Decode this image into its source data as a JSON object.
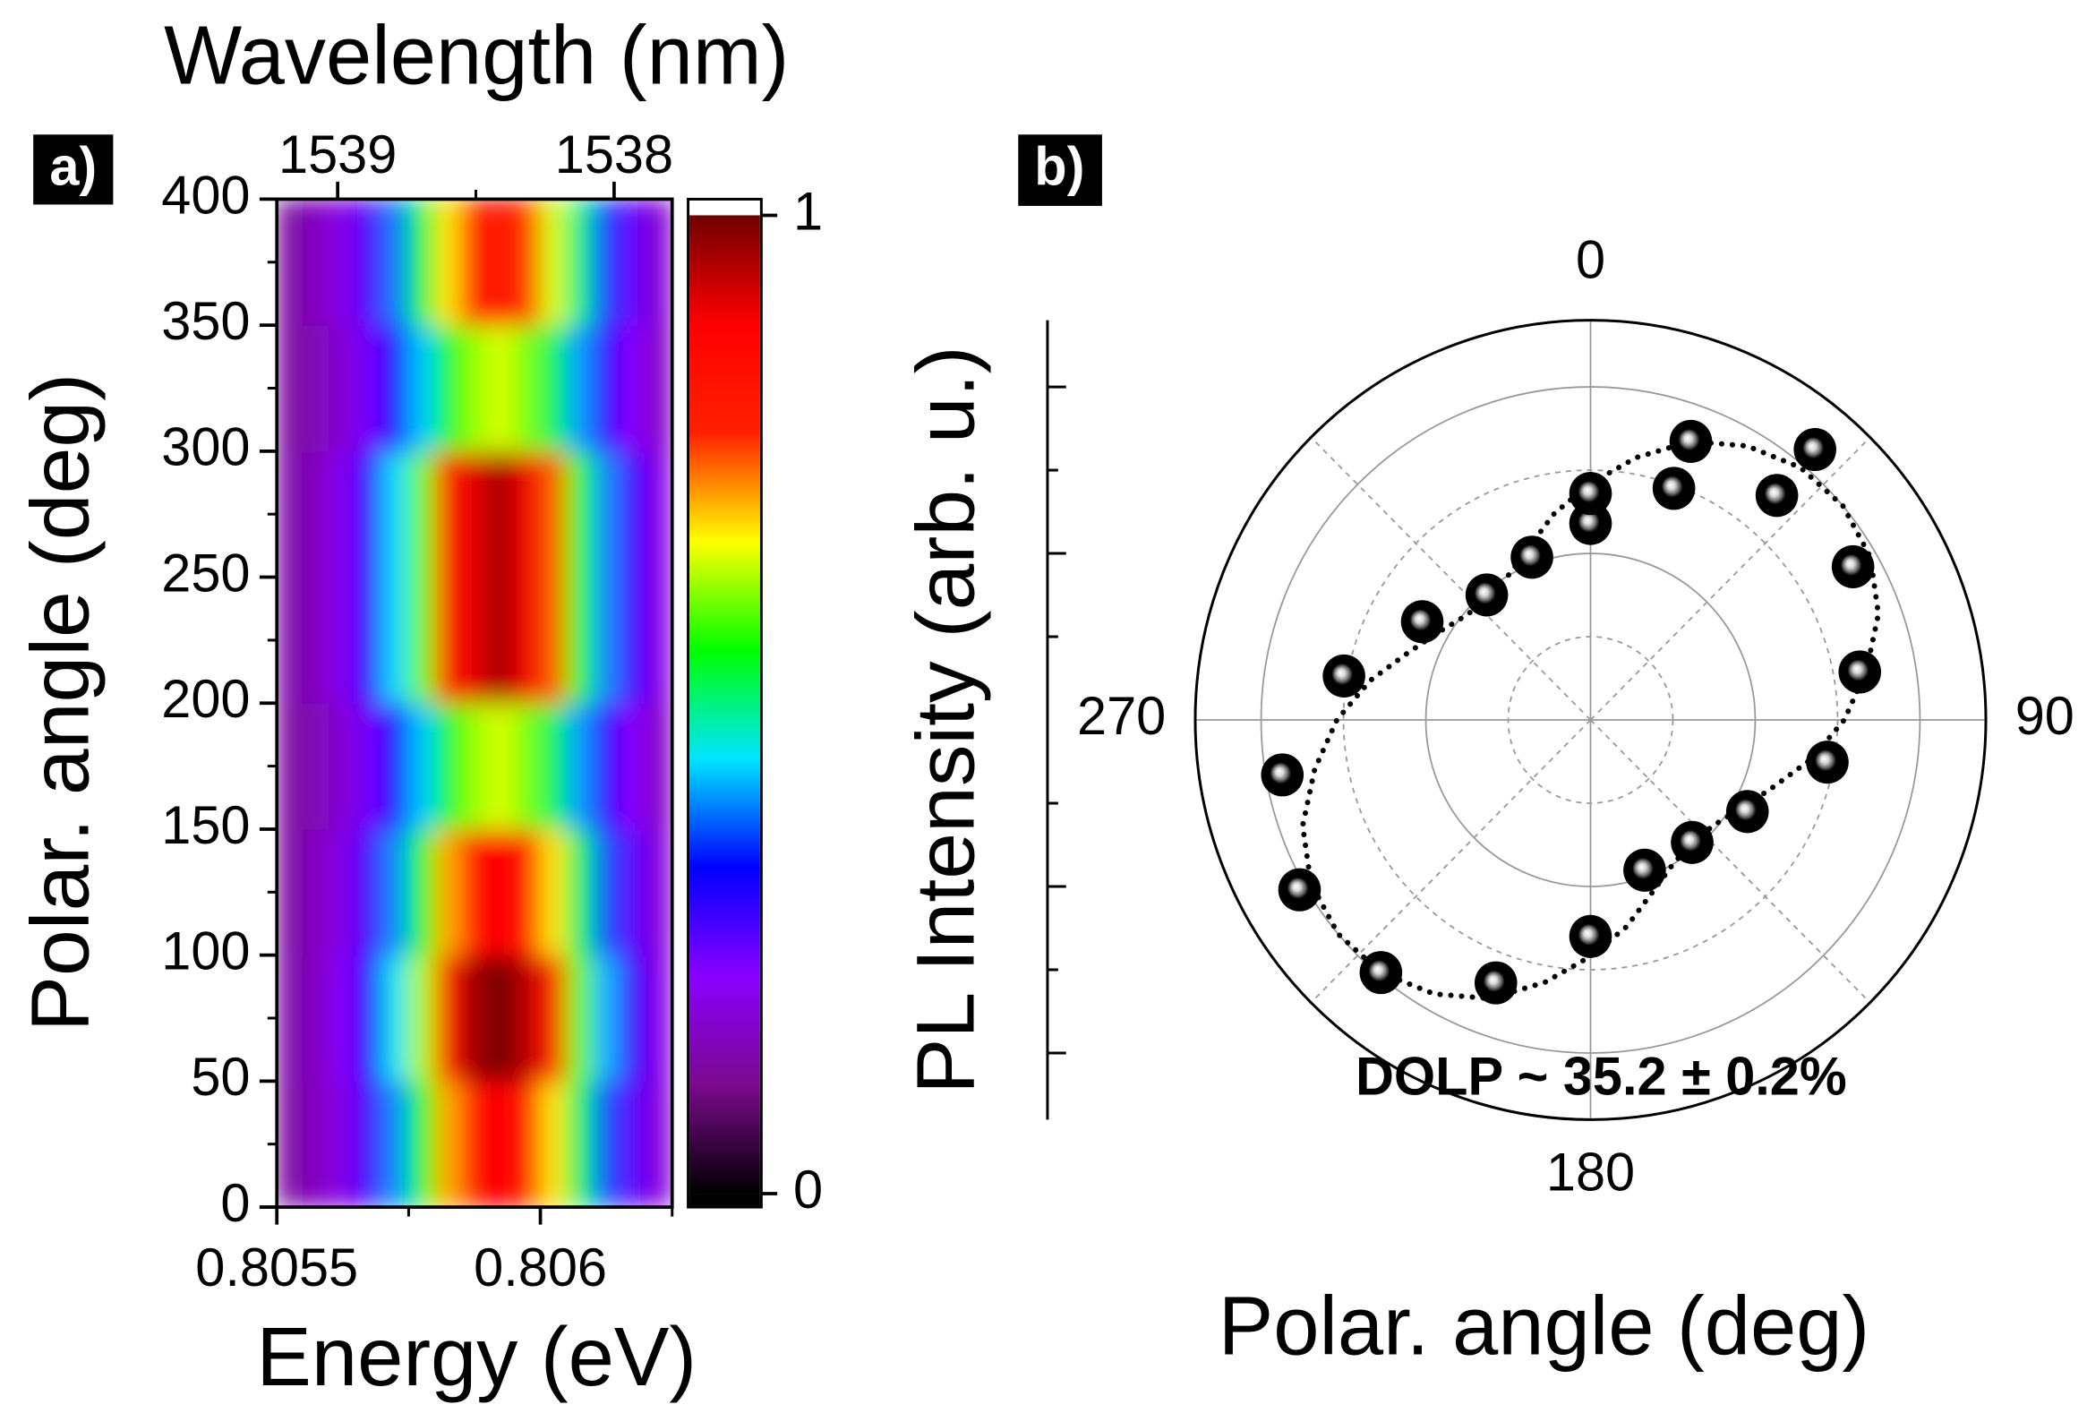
{
  "chart_data": [
    {
      "type": "heatmap",
      "label": "a)",
      "x2label": "Wavelength (nm)",
      "xlabel": "Energy (eV)",
      "ylabel": "Polar. angle (deg)",
      "xlim": [
        0.8055,
        0.80625
      ],
      "xticks": [
        0.8055,
        0.806
      ],
      "x2lim": [
        1539.22,
        1537.79
      ],
      "x2ticks": [
        1539,
        1538
      ],
      "ylim": [
        0,
        400
      ],
      "yticks": [
        0,
        50,
        100,
        150,
        200,
        250,
        300,
        350,
        400
      ],
      "x": [
        0.805525,
        0.805575,
        0.805625,
        0.805675,
        0.805725,
        0.805775,
        0.805825,
        0.805875,
        0.805925,
        0.805975,
        0.806025,
        0.806075,
        0.806125,
        0.806175,
        0.806225
      ],
      "y": [
        25,
        75,
        125,
        175,
        225,
        275,
        325,
        375
      ],
      "z": [
        [
          0.13,
          0.16,
          0.2,
          0.28,
          0.4,
          0.55,
          0.71,
          0.83,
          0.87,
          0.82,
          0.68,
          0.52,
          0.37,
          0.26,
          0.19
        ],
        [
          0.14,
          0.16,
          0.22,
          0.31,
          0.45,
          0.63,
          0.82,
          0.96,
          1.0,
          0.94,
          0.78,
          0.6,
          0.42,
          0.29,
          0.2
        ],
        [
          0.13,
          0.16,
          0.2,
          0.28,
          0.4,
          0.55,
          0.71,
          0.83,
          0.87,
          0.82,
          0.68,
          0.52,
          0.37,
          0.26,
          0.19
        ],
        [
          0.13,
          0.15,
          0.18,
          0.24,
          0.32,
          0.43,
          0.54,
          0.62,
          0.65,
          0.61,
          0.52,
          0.41,
          0.3,
          0.22,
          0.17
        ],
        [
          0.14,
          0.16,
          0.21,
          0.3,
          0.44,
          0.6,
          0.78,
          0.91,
          0.96,
          0.9,
          0.75,
          0.57,
          0.4,
          0.28,
          0.2
        ],
        [
          0.14,
          0.16,
          0.21,
          0.3,
          0.44,
          0.6,
          0.78,
          0.91,
          0.96,
          0.9,
          0.75,
          0.57,
          0.4,
          0.28,
          0.2
        ],
        [
          0.13,
          0.15,
          0.18,
          0.24,
          0.32,
          0.43,
          0.54,
          0.62,
          0.65,
          0.61,
          0.52,
          0.41,
          0.3,
          0.22,
          0.17
        ],
        [
          0.13,
          0.16,
          0.2,
          0.27,
          0.39,
          0.53,
          0.68,
          0.79,
          0.82,
          0.77,
          0.65,
          0.5,
          0.36,
          0.25,
          0.18
        ]
      ],
      "clim": [
        0,
        1
      ],
      "cticks": [
        0,
        1
      ],
      "colormap": [
        "#000000",
        "#7a0a8c",
        "#8a00ff",
        "#0000ff",
        "#00e5ff",
        "#00ff00",
        "#ffff00",
        "#ff2000",
        "#ff0000",
        "#700000"
      ]
    },
    {
      "type": "polar",
      "label": "b)",
      "xlabel": "Polar. angle (deg)",
      "ylabel": "PL Intensity (arb. u.)",
      "annotation": "DOLP ~ 35.2 ± 0.2%",
      "thetaticks": [
        0,
        90,
        180,
        270
      ],
      "rlim": [
        0,
        1.2
      ],
      "rticks": [
        0.25,
        0.5,
        0.75,
        1
      ],
      "points": {
        "color": "#000000",
        "theta": [
          0,
          20,
          40,
          60,
          80,
          100,
          120,
          140,
          160,
          180,
          200,
          220,
          240,
          260,
          280,
          300,
          320,
          340,
          360,
          380,
          400
        ],
        "r": [
          0.59,
          0.74,
          0.88,
          0.92,
          0.83,
          0.73,
          0.55,
          0.48,
          0.48,
          0.65,
          0.84,
          0.99,
          1.02,
          0.95,
          0.76,
          0.59,
          0.49,
          0.52,
          0.68,
          0.89,
          1.06
        ]
      },
      "fit": {
        "color": "#000000",
        "theta": [
          0,
          10,
          20,
          30,
          40,
          50,
          60,
          70,
          80,
          90,
          100,
          110,
          120,
          130,
          140,
          150,
          160,
          170,
          180,
          190,
          200,
          210,
          220,
          230,
          240,
          250,
          260,
          270,
          280,
          290,
          300,
          310,
          320,
          330,
          340,
          350,
          360
        ],
        "r": [
          0.71,
          0.8,
          0.89,
          0.95,
          0.99,
          1.0,
          0.98,
          0.93,
          0.85,
          0.77,
          0.68,
          0.59,
          0.53,
          0.49,
          0.48,
          0.5,
          0.55,
          0.63,
          0.71,
          0.8,
          0.89,
          0.95,
          0.99,
          1.0,
          0.98,
          0.93,
          0.85,
          0.77,
          0.68,
          0.59,
          0.53,
          0.49,
          0.48,
          0.5,
          0.55,
          0.63,
          0.71
        ]
      }
    }
  ]
}
